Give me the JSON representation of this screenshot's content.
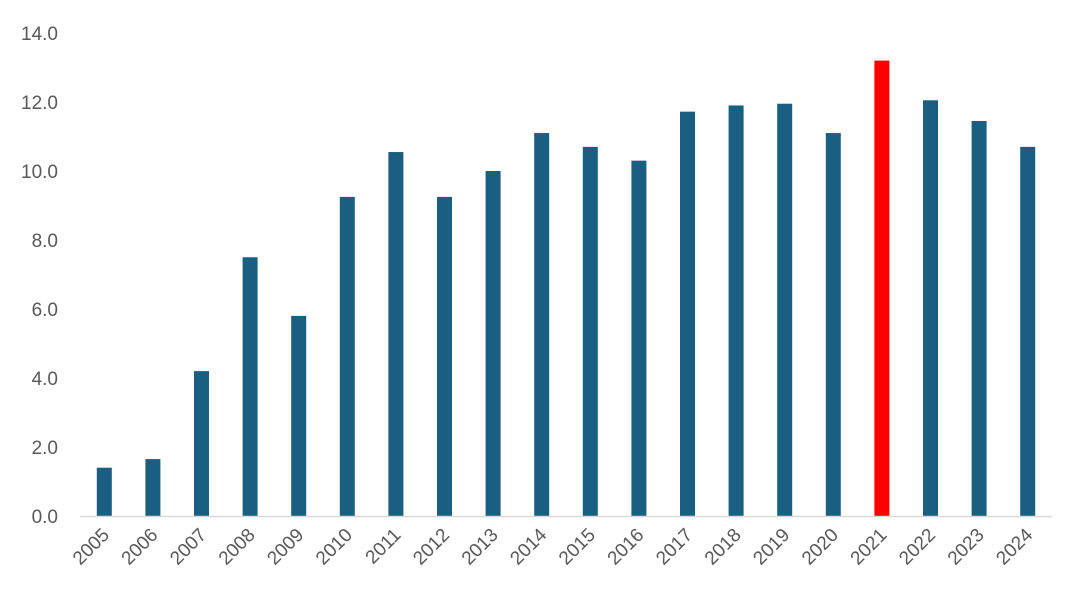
{
  "chart_data": {
    "type": "bar",
    "title": "",
    "xlabel": "",
    "ylabel": "",
    "ylim": [
      0,
      14
    ],
    "y_ticks": [
      "0.0",
      "2.0",
      "4.0",
      "6.0",
      "8.0",
      "10.0",
      "12.0",
      "14.0"
    ],
    "grid": false,
    "legend": "none",
    "categories": [
      "2005",
      "2006",
      "2007",
      "2008",
      "2009",
      "2010",
      "2011",
      "2012",
      "2013",
      "2014",
      "2015",
      "2016",
      "2017",
      "2018",
      "2019",
      "2020",
      "2021",
      "2022",
      "2023",
      "2024"
    ],
    "values": [
      1.4,
      1.65,
      4.2,
      7.5,
      5.8,
      9.25,
      10.55,
      9.25,
      10.0,
      11.1,
      10.7,
      10.3,
      11.72,
      11.9,
      11.95,
      11.1,
      13.2,
      12.05,
      11.45,
      10.7
    ],
    "bar_color": "#1A5F82",
    "highlight_category": "2021",
    "highlight_color": "#FF0000",
    "axis_color": "#D9D9D9",
    "tick_label_color": "#595959"
  }
}
